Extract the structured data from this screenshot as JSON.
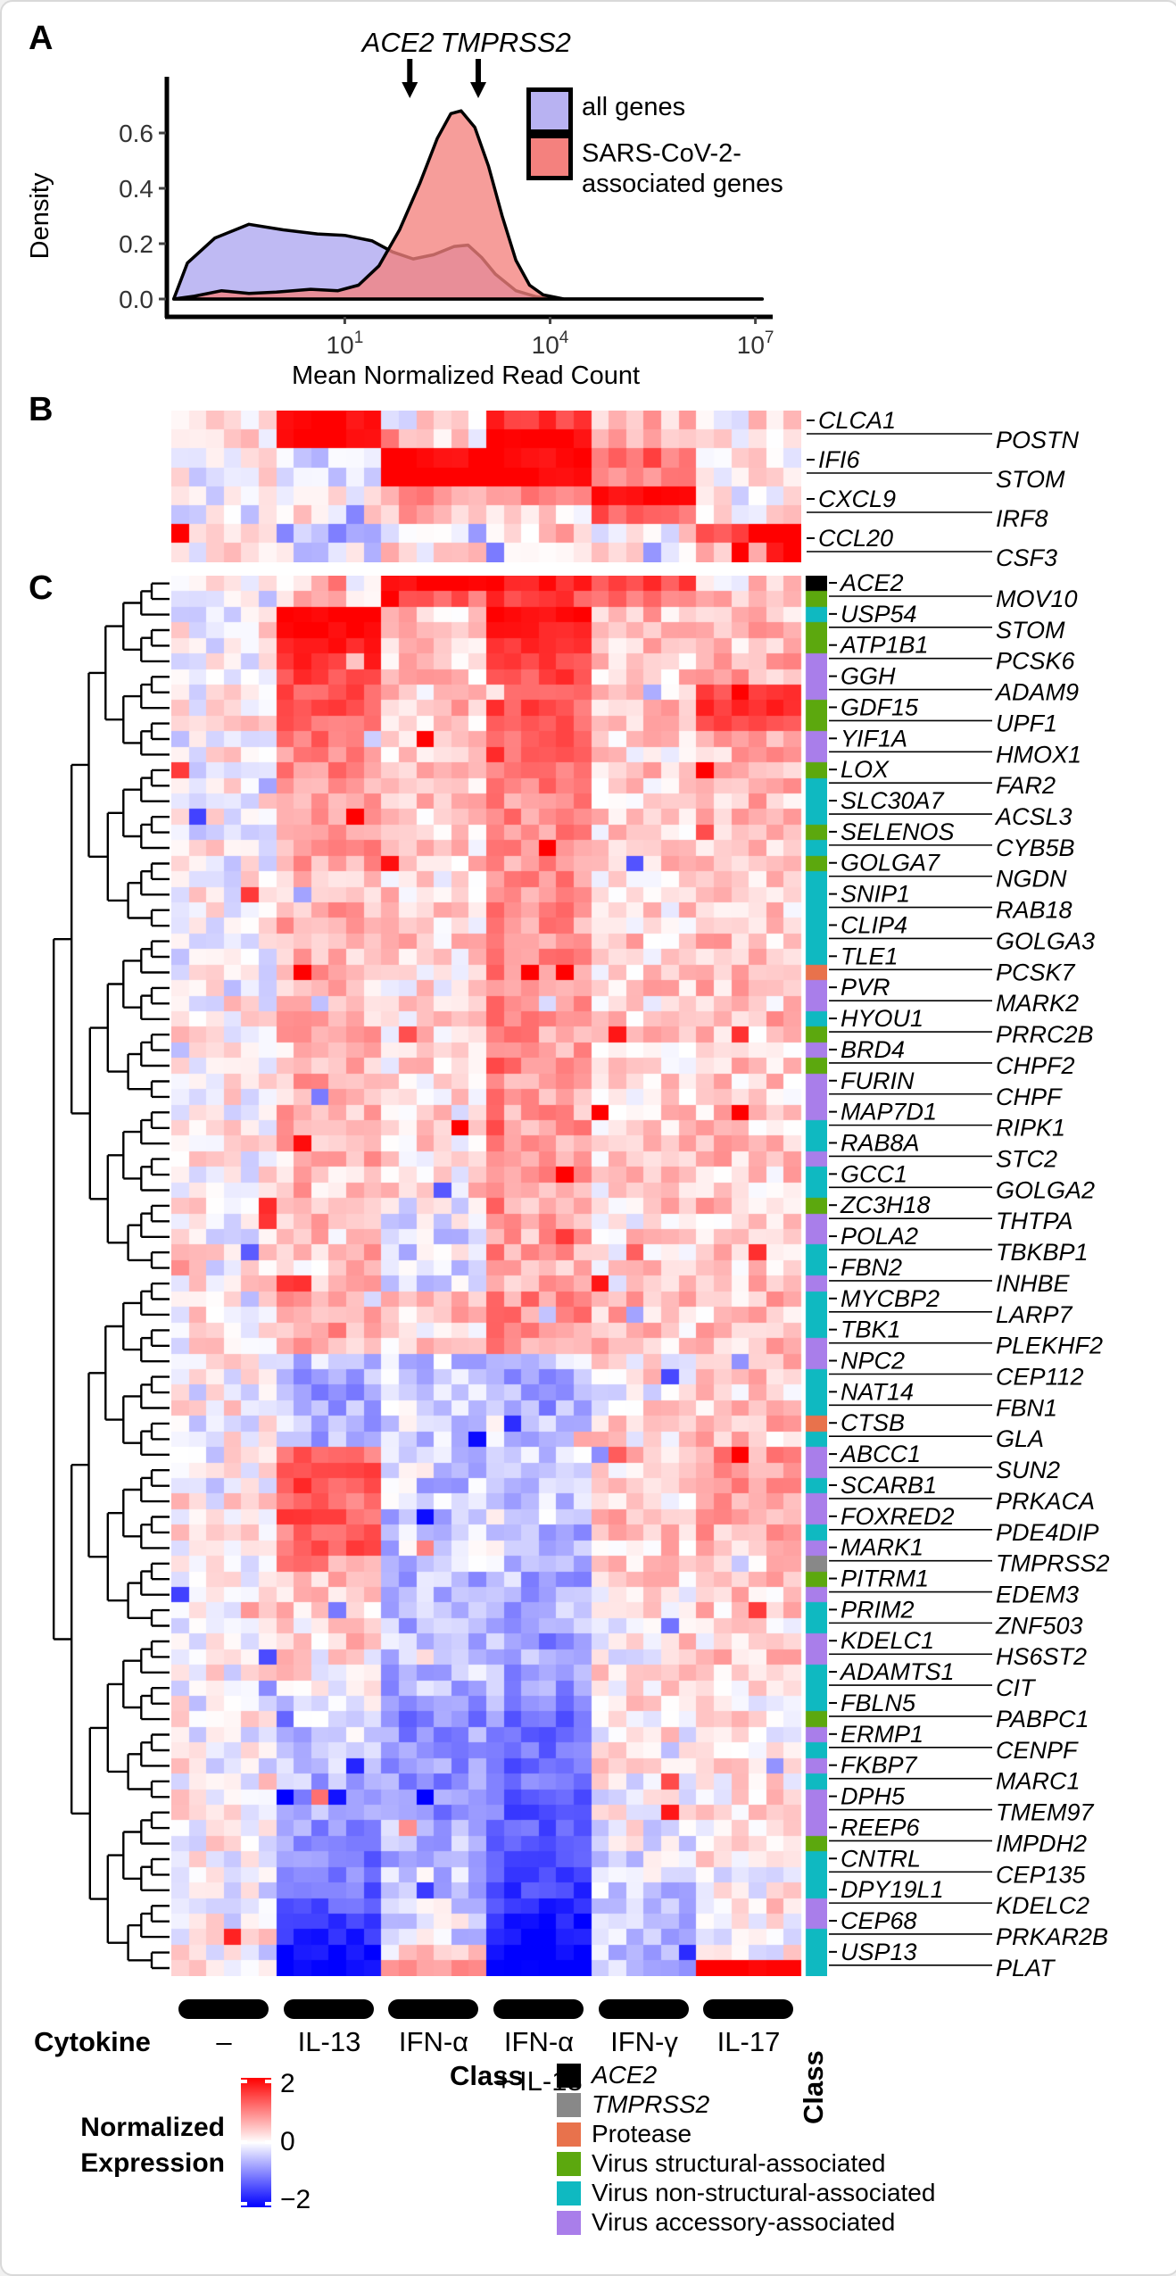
{
  "panels": {
    "a": "A",
    "b": "B",
    "c": "C"
  },
  "colors": {
    "heat_max": "#ff0000",
    "heat_min": "#0000ff",
    "heat_mid": "#ffffff",
    "all_genes_fill": "#B8B2F2",
    "sars_fill": "#F4817E",
    "class_K": "#000000",
    "class_G": "#888888",
    "class_O": "#E8724C",
    "class_S": "#5CA80E",
    "class_N": "#0FB9C1",
    "class_A": "#A97EEA"
  },
  "panelA_legend": {
    "item1": "all genes",
    "item2_line1": "SARS-CoV-2-",
    "item2_line2": "associated genes"
  },
  "cytokine": {
    "title": "Cytokine",
    "labels": [
      "–",
      "IL-13",
      "IFN-α",
      "IFN-α",
      "IFN-γ",
      "IL-17"
    ],
    "group4_line2": "+ IL-13",
    "class_label": "Class"
  },
  "legend_expression": {
    "title_line1": "Normalized",
    "title_line2": "Expression",
    "ticks": [
      "2",
      "0",
      "−2"
    ]
  },
  "legend_class": {
    "title": "Class",
    "items": [
      {
        "label": "ACE2",
        "class": "K",
        "italic": true
      },
      {
        "label": "TMPRSS2",
        "class": "G",
        "italic": true
      },
      {
        "label": "Protease",
        "class": "O",
        "italic": false
      },
      {
        "label": "Virus structural-associated",
        "class": "S",
        "italic": false
      },
      {
        "label": "Virus non-structural-associated",
        "class": "N",
        "italic": false
      },
      {
        "label": "Virus accessory-associated",
        "class": "A",
        "italic": false
      }
    ]
  },
  "chart_data": [
    {
      "type": "area",
      "title": "",
      "xlabel": "Mean Normalized Read Count",
      "ylabel": "Density",
      "x_scale": "log10",
      "x_ticks_exp": [
        1,
        4,
        7
      ],
      "y_ticks": [
        0.0,
        0.2,
        0.4,
        0.6
      ],
      "xlim_log": [
        -1.6,
        7.2
      ],
      "ylim": [
        0,
        0.72
      ],
      "legend_position": "right",
      "series": [
        {
          "name": "all genes",
          "color": "#B8B2F2",
          "points": [
            [
              -1.5,
              0
            ],
            [
              -1.3,
              0.13
            ],
            [
              -0.9,
              0.22
            ],
            [
              -0.4,
              0.27
            ],
            [
              0.1,
              0.25
            ],
            [
              0.6,
              0.235
            ],
            [
              1.0,
              0.23
            ],
            [
              1.4,
              0.21
            ],
            [
              1.7,
              0.17
            ],
            [
              2.0,
              0.145
            ],
            [
              2.3,
              0.16
            ],
            [
              2.6,
              0.19
            ],
            [
              2.8,
              0.195
            ],
            [
              3.0,
              0.15
            ],
            [
              3.2,
              0.09
            ],
            [
              3.5,
              0.03
            ],
            [
              3.8,
              0.008
            ],
            [
              4.2,
              0
            ],
            [
              7.1,
              0
            ]
          ]
        },
        {
          "name": "SARS-CoV-2-associated genes",
          "color": "#F4817E",
          "points": [
            [
              -1.5,
              0
            ],
            [
              -1.2,
              0.01
            ],
            [
              -0.8,
              0.03
            ],
            [
              -0.4,
              0.02
            ],
            [
              0,
              0.025
            ],
            [
              0.5,
              0.035
            ],
            [
              0.9,
              0.03
            ],
            [
              1.2,
              0.05
            ],
            [
              1.5,
              0.12
            ],
            [
              1.8,
              0.25
            ],
            [
              2.1,
              0.42
            ],
            [
              2.35,
              0.58
            ],
            [
              2.55,
              0.67
            ],
            [
              2.7,
              0.68
            ],
            [
              2.9,
              0.62
            ],
            [
              3.1,
              0.48
            ],
            [
              3.3,
              0.3
            ],
            [
              3.5,
              0.14
            ],
            [
              3.7,
              0.05
            ],
            [
              3.9,
              0.015
            ],
            [
              4.2,
              0
            ],
            [
              7.1,
              0
            ]
          ]
        }
      ],
      "annotations": [
        {
          "label": "ACE2",
          "x_log": 1.95,
          "label_cx_log": 1.78
        },
        {
          "label": "TMPRSS2",
          "x_log": 2.95,
          "label_cx_log": 3.35
        }
      ]
    },
    {
      "type": "heatmap",
      "panel": "B",
      "columns_per_group": 6,
      "groups": [
        "–",
        "IL-13",
        "IFN-α",
        "IFN-α + IL-13",
        "IFN-γ",
        "IL-17"
      ],
      "genes_left": [
        "CLCA1",
        "IFI6",
        "CXCL9",
        "CCL20"
      ],
      "genes_right": [
        "POSTN",
        "STOM",
        "IRF8",
        "CSF3"
      ],
      "scale": {
        "min": -2,
        "max": 2
      },
      "group_values": [
        [
          0.1,
          2,
          0.1,
          1.6,
          0.6,
          0.2
        ],
        [
          0.2,
          2,
          0.2,
          2,
          0.5,
          0.1
        ],
        [
          0.2,
          -0.4,
          2,
          2,
          1.2,
          0.1
        ],
        [
          0,
          -0.2,
          2,
          2,
          0.8,
          0.1
        ],
        [
          0,
          0.1,
          0.8,
          0.9,
          2,
          0.1
        ],
        [
          0,
          0.1,
          0.5,
          0.3,
          1.2,
          0.2
        ],
        [
          0.4,
          -0.6,
          -0.4,
          0.4,
          0.1,
          1.2
        ],
        [
          0.2,
          -0.1,
          0.2,
          0.3,
          0.1,
          0.5
        ]
      ],
      "overrides": {
        "6": [
          [
            0,
            2
          ],
          [
            33,
            2
          ],
          [
            34,
            2
          ],
          [
            35,
            2
          ]
        ],
        "7": [
          [
            34,
            1.8
          ],
          [
            35,
            2
          ]
        ]
      },
      "column_bias": {}
    },
    {
      "type": "heatmap",
      "panel": "C",
      "columns_per_group": 6,
      "groups": [
        "–",
        "IL-13",
        "IFN-α",
        "IFN-α + IL-13",
        "IFN-γ",
        "IL-17"
      ],
      "genes_left": [
        "ACE2",
        "USP54",
        "ATP1B1",
        "GGH",
        "GDF15",
        "YIF1A",
        "LOX",
        "SLC30A7",
        "SELENOS",
        "GOLGA7",
        "SNIP1",
        "CLIP4",
        "TLE1",
        "PVR",
        "HYOU1",
        "BRD4",
        "FURIN",
        "MAP7D1",
        "RAB8A",
        "GCC1",
        "ZC3H18",
        "POLA2",
        "FBN2",
        "MYCBP2",
        "TBK1",
        "NPC2",
        "NAT14",
        "CTSB",
        "ABCC1",
        "SCARB1",
        "FOXRED2",
        "MARK1",
        "PITRM1",
        "PRIM2",
        "KDELC1",
        "ADAMTS1",
        "FBLN5",
        "ERMP1",
        "FKBP7",
        "DPH5",
        "REEP6",
        "CNTRL",
        "DPY19L1",
        "CEP68",
        "USP13"
      ],
      "genes_right": [
        "MOV10",
        "STOM",
        "PCSK6",
        "ADAM9",
        "UPF1",
        "HMOX1",
        "FAR2",
        "ACSL3",
        "CYB5B",
        "NGDN",
        "RAB18",
        "GOLGA3",
        "PCSK7",
        "MARK2",
        "PRRC2B",
        "CHPF2",
        "CHPF",
        "RIPK1",
        "STC2",
        "GOLGA2",
        "THTPA",
        "TBKBP1",
        "INHBE",
        "LARP7",
        "PLEKHF2",
        "CEP112",
        "FBN1",
        "GLA",
        "SUN2",
        "PRKACA",
        "PDE4DIP",
        "TMPRSS2",
        "EDEM3",
        "ZNF503",
        "HS6ST2",
        "CIT",
        "PABPC1",
        "CENPF",
        "MARC1",
        "TMEM97",
        "IMPDH2",
        "CEP135",
        "KDELC2",
        "PRKAR2B",
        "PLAT"
      ],
      "classes": "KSNSSAAASSAASNNNSNSNNNNNNOAANSASAAANNANNSAANNANNNAANNNONAANAANAGSANNAANNNSANANAAASNNNAANNNA",
      "scale": {
        "min": -2,
        "max": 2
      },
      "column_bias": {
        "18": 0.5
      },
      "overrides": {},
      "group_values": [
        [
          0,
          0.3,
          2,
          1.8,
          1.5,
          0.3
        ],
        [
          -0.2,
          0.4,
          1.2,
          1.4,
          1,
          0.5
        ],
        [
          0,
          2,
          0.4,
          2,
          0.5,
          0.4
        ],
        [
          0.1,
          2,
          0.3,
          1.8,
          0.4,
          0.6
        ],
        [
          0,
          1.8,
          0.4,
          1.6,
          0.5,
          0.5
        ],
        [
          0.1,
          1.6,
          0.3,
          1.5,
          0.3,
          0.7
        ],
        [
          0,
          1.5,
          0.4,
          1.4,
          0.4,
          0.6
        ],
        [
          0.1,
          1.4,
          0.3,
          1.3,
          0.3,
          1.4
        ],
        [
          0,
          1.3,
          0.5,
          1.3,
          0.4,
          1.7
        ],
        [
          0.1,
          1.2,
          0.4,
          1.2,
          0.3,
          1.5
        ],
        [
          0,
          1,
          0.5,
          1.2,
          0.4,
          0.8
        ],
        [
          0.1,
          0.9,
          0.4,
          1.1,
          0.3,
          0.6
        ],
        [
          0,
          0.9,
          0.5,
          1,
          0.4,
          0.5
        ],
        [
          0.1,
          0.8,
          0.4,
          1,
          0.3,
          0.5
        ],
        [
          0,
          0.8,
          0.4,
          0.9,
          0.4,
          0.5
        ],
        [
          0.1,
          0.7,
          0.3,
          0.9,
          0.3,
          0.4
        ],
        [
          0,
          0.7,
          0.4,
          0.9,
          0.3,
          0.5
        ],
        [
          0.1,
          0.7,
          0.3,
          0.8,
          0.4,
          0.4
        ],
        [
          0,
          0.6,
          0.4,
          0.8,
          0.3,
          0.4
        ],
        [
          0.1,
          0.6,
          0.3,
          0.8,
          0.3,
          0.5
        ],
        [
          0,
          0.6,
          0.3,
          0.8,
          0.4,
          0.4
        ],
        [
          0.1,
          0.7,
          0.4,
          0.9,
          0.3,
          0.4
        ],
        [
          0,
          0.7,
          0.3,
          0.8,
          0.3,
          0.5
        ],
        [
          0.1,
          0.6,
          0.4,
          0.9,
          0.4,
          0.4
        ],
        [
          0,
          0.6,
          0.2,
          0.8,
          0.3,
          0.5
        ],
        [
          0.1,
          0.6,
          0.3,
          0.9,
          0.3,
          0.4
        ],
        [
          0,
          0.5,
          0.2,
          0.8,
          0.4,
          0.5
        ],
        [
          0.1,
          0.6,
          0.3,
          0.8,
          0.3,
          0.4
        ],
        [
          0,
          0.6,
          0.2,
          0.9,
          0.3,
          0.5
        ],
        [
          0.1,
          0.5,
          0.3,
          0.8,
          0.4,
          0.4
        ],
        [
          0,
          0.5,
          0.2,
          0.8,
          0.3,
          0.4
        ],
        [
          0.1,
          0.6,
          0.3,
          0.9,
          0.3,
          0.5
        ],
        [
          0,
          0.6,
          0.2,
          0.8,
          0.4,
          0.4
        ],
        [
          0.1,
          0.5,
          0.3,
          0.8,
          0.3,
          0.4
        ],
        [
          0,
          0.5,
          0.2,
          0.7,
          0.3,
          0.5
        ],
        [
          0.1,
          0.5,
          0.3,
          0.8,
          0.4,
          0.4
        ],
        [
          0,
          0.6,
          0.2,
          0.8,
          0.3,
          0.4
        ],
        [
          0.1,
          0.5,
          0.3,
          0.7,
          0.3,
          0.5
        ],
        [
          0,
          0.5,
          0.2,
          0.8,
          0.4,
          0.4
        ],
        [
          0.1,
          0.5,
          0.3,
          0.7,
          0.3,
          0.4
        ],
        [
          0,
          0.5,
          -0.2,
          0.7,
          0.3,
          0.5
        ],
        [
          0.1,
          0.5,
          -0.2,
          0.7,
          0.2,
          0.4
        ],
        [
          0,
          0.4,
          -0.3,
          0.6,
          0.3,
          0.4
        ],
        [
          0.1,
          0.5,
          -0.2,
          0.7,
          0.2,
          0.5
        ],
        [
          0,
          0.4,
          -0.2,
          0.6,
          0.3,
          0.4
        ],
        [
          0.1,
          0.5,
          -0.3,
          0.7,
          0.2,
          0.4
        ],
        [
          0,
          0.8,
          0.3,
          0.9,
          0.5,
          0.5
        ],
        [
          0.1,
          0.8,
          0.4,
          0.9,
          0.5,
          0.4
        ],
        [
          0,
          0.7,
          0.3,
          0.8,
          0.4,
          0.5
        ],
        [
          0.1,
          0.6,
          0.3,
          0.8,
          0.4,
          0.4
        ],
        [
          0,
          -0.5,
          -0.4,
          -0.5,
          0.2,
          0.5
        ],
        [
          0.1,
          -0.6,
          -0.4,
          -0.6,
          0.2,
          0.4
        ],
        [
          0,
          -0.7,
          -0.5,
          -0.6,
          0.1,
          0.4
        ],
        [
          0.1,
          -0.6,
          -0.4,
          -0.7,
          0.2,
          0.3
        ],
        [
          0,
          -0.5,
          -0.3,
          -0.5,
          0.3,
          0.6
        ],
        [
          0.1,
          -0.6,
          -0.4,
          -0.6,
          0.2,
          0.4
        ],
        [
          0,
          1.2,
          -0.3,
          -0.4,
          0.4,
          0.8
        ],
        [
          0.1,
          1.3,
          -0.3,
          -0.5,
          0.3,
          0.7
        ],
        [
          0,
          1.4,
          -0.4,
          -0.4,
          0.4,
          0.8
        ],
        [
          0.1,
          1.2,
          -0.3,
          -0.5,
          0.3,
          0.6
        ],
        [
          0,
          1.3,
          -0.4,
          -0.4,
          0.4,
          0.7
        ],
        [
          0.1,
          1.1,
          -0.3,
          -0.5,
          0.3,
          0.6
        ],
        [
          0,
          1.3,
          -0.4,
          -0.5,
          0.4,
          0.5
        ],
        [
          0.1,
          0.8,
          -0.4,
          -0.6,
          0.3,
          0.4
        ],
        [
          0,
          0.6,
          -0.5,
          -0.6,
          0.2,
          0.4
        ],
        [
          0.1,
          0.5,
          -0.5,
          -0.7,
          0.2,
          0.3
        ],
        [
          0,
          0.4,
          -0.5,
          -0.6,
          0.2,
          0.4
        ],
        [
          0.1,
          0.3,
          -0.6,
          -0.7,
          0.1,
          0.3
        ],
        [
          0,
          0.3,
          -0.5,
          -0.8,
          0.2,
          0.3
        ],
        [
          0.1,
          0.2,
          -0.6,
          -0.7,
          0.1,
          0.4
        ],
        [
          0,
          0.2,
          -0.5,
          -0.8,
          0.2,
          0.3
        ],
        [
          0.1,
          0.1,
          -0.6,
          -0.8,
          0.1,
          0.3
        ],
        [
          0,
          -0.3,
          -0.8,
          -1,
          0.1,
          0.2
        ],
        [
          0.1,
          -0.4,
          -0.9,
          -1.1,
          0,
          0.3
        ],
        [
          0,
          -0.4,
          -0.8,
          -1.2,
          0.1,
          0.2
        ],
        [
          0.1,
          -0.5,
          -0.9,
          -1.1,
          0,
          0.2
        ],
        [
          0,
          -0.5,
          -0.8,
          -1.2,
          0.1,
          0.3
        ],
        [
          0.1,
          -0.6,
          -0.9,
          -1.1,
          0,
          0.2
        ],
        [
          0,
          -0.6,
          -0.8,
          -1.2,
          -0.1,
          0.2
        ],
        [
          0.1,
          -0.7,
          -0.9,
          -1.3,
          0,
          0.1
        ],
        [
          0,
          -0.8,
          -0.6,
          -1.3,
          -0.1,
          0.2
        ],
        [
          0.1,
          -0.9,
          -0.5,
          -1.4,
          -0.1,
          0.1
        ],
        [
          0,
          -1,
          -0.5,
          -1.4,
          -0.2,
          0.2
        ],
        [
          0.1,
          -1.1,
          -0.4,
          -1.5,
          -0.2,
          0.1
        ],
        [
          0,
          -1.2,
          -0.4,
          -1.5,
          -0.3,
          0.1
        ],
        [
          0.1,
          -1.3,
          -0.3,
          -1.6,
          -0.3,
          0.2
        ],
        [
          0,
          -1.5,
          -0.2,
          -1.8,
          -0.4,
          0.1
        ],
        [
          0.1,
          -1.7,
          -0.3,
          -1.9,
          -0.4,
          0.1
        ],
        [
          0,
          -1.9,
          0.2,
          -2,
          -0.5,
          0
        ],
        [
          0.3,
          -2,
          0.8,
          -2,
          -0.4,
          2
        ]
      ]
    }
  ]
}
